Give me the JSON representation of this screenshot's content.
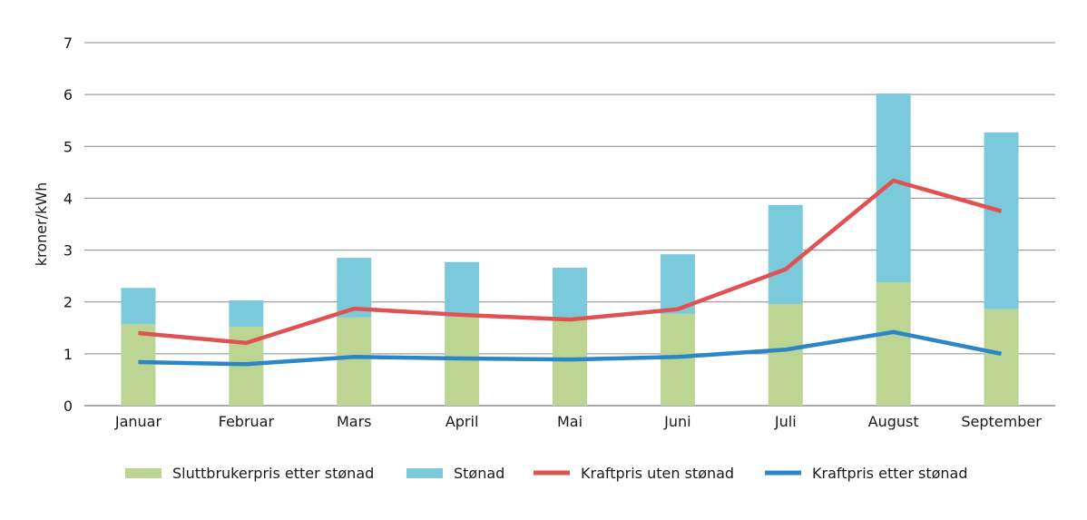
{
  "chart_data": {
    "type": "bar",
    "stacked": true,
    "title": "",
    "xlabel": "",
    "ylabel": "kroner/kWh",
    "ylim": [
      0,
      7
    ],
    "yticks": [
      "0",
      "1",
      "2",
      "3",
      "4",
      "5",
      "6",
      "7"
    ],
    "grid": true,
    "legend_position": "bottom",
    "categories": [
      "Januar",
      "Februar",
      "Mars",
      "April",
      "Mai",
      "Juni",
      "Juli",
      "August",
      "September"
    ],
    "series": [
      {
        "name": "Sluttbrukerpris etter stønad",
        "kind": "bar",
        "color": "#bcd592",
        "values": [
          1.57,
          1.52,
          1.7,
          1.71,
          1.65,
          1.77,
          1.96,
          2.38,
          1.86
        ]
      },
      {
        "name": "Stønad",
        "kind": "bar",
        "color": "#7bcadc",
        "values": [
          0.7,
          0.51,
          1.15,
          1.06,
          1.01,
          1.15,
          1.91,
          3.64,
          3.41
        ]
      },
      {
        "name": "Kraftpris uten stønad",
        "kind": "line",
        "color": "#e05252",
        "values": [
          1.4,
          1.21,
          1.87,
          1.75,
          1.66,
          1.86,
          2.63,
          4.34,
          3.75
        ]
      },
      {
        "name": "Kraftpris etter stønad",
        "kind": "line",
        "color": "#2a86c6",
        "values": [
          0.84,
          0.8,
          0.94,
          0.91,
          0.89,
          0.94,
          1.08,
          1.42,
          1.0
        ]
      }
    ]
  }
}
